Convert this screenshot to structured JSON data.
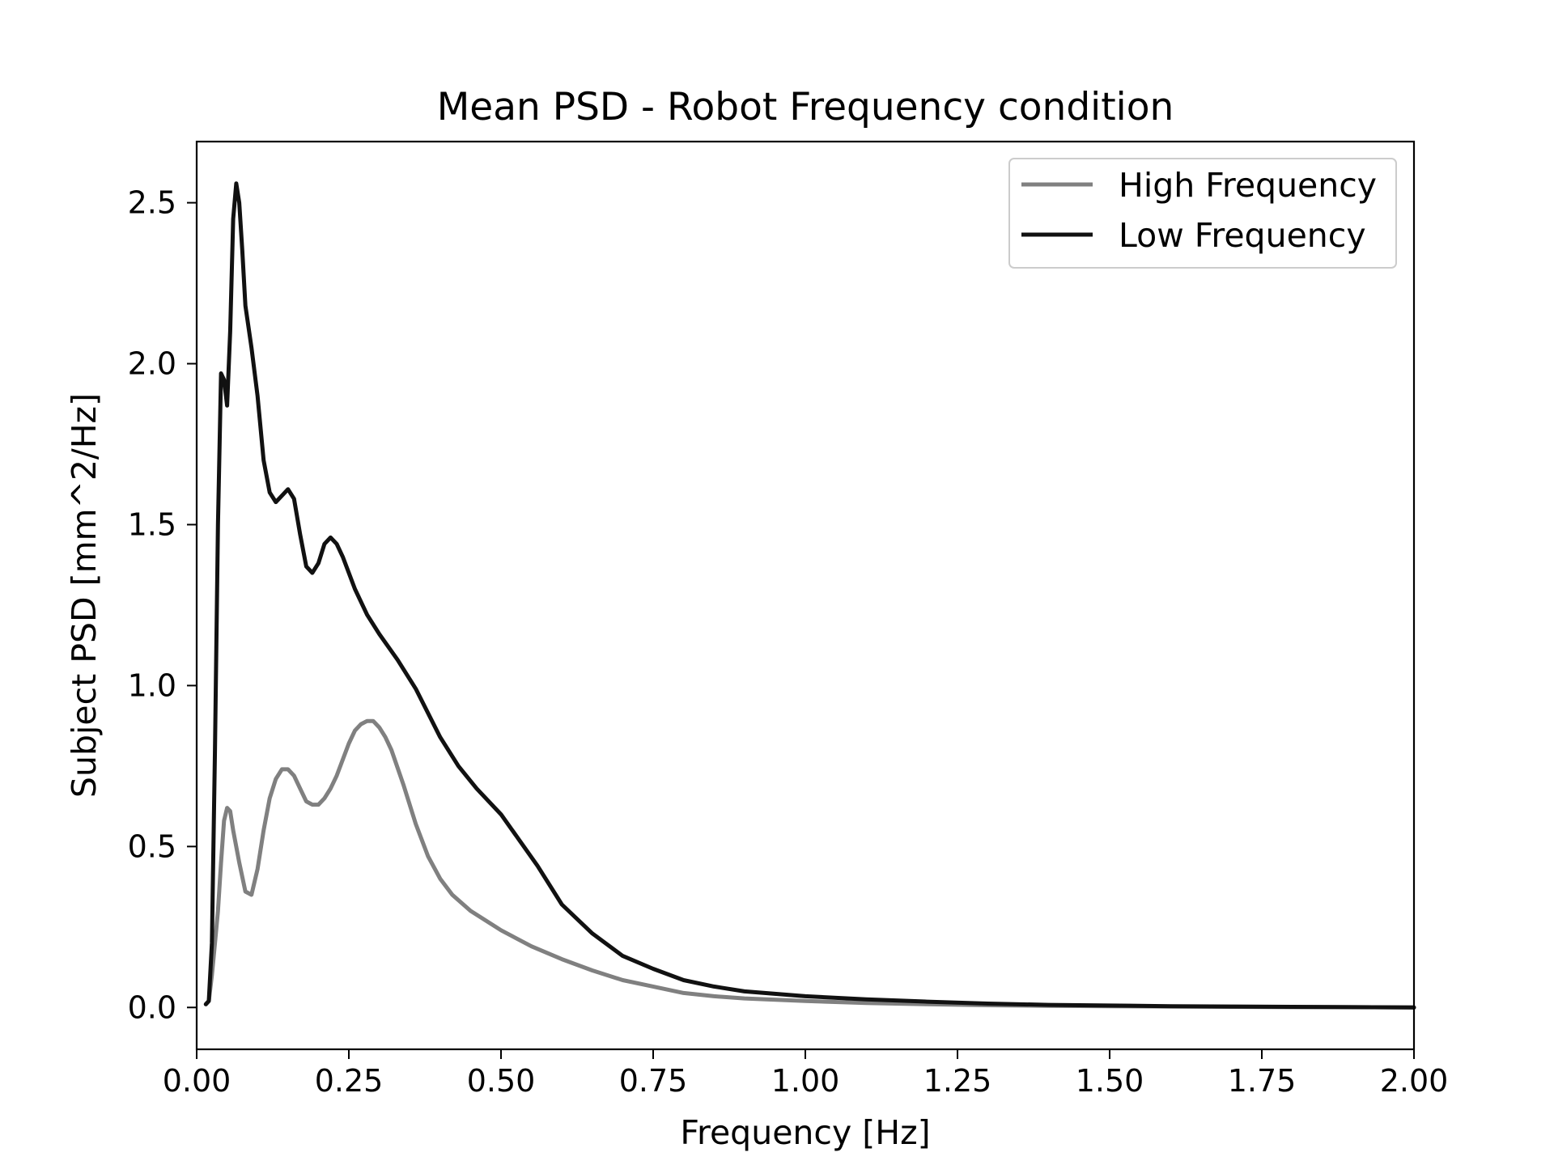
{
  "chart_data": {
    "type": "line",
    "title": "Mean PSD - Robot Frequency condition",
    "xlabel": "Frequency [Hz]",
    "ylabel": "Subject PSD [mm^2/Hz]",
    "xlim": [
      0.0,
      2.0
    ],
    "ylim": [
      -0.13,
      2.69
    ],
    "grid": false,
    "legend_position": "top-right",
    "xticks": [
      0.0,
      0.25,
      0.5,
      0.75,
      1.0,
      1.25,
      1.5,
      1.75,
      2.0
    ],
    "xtick_labels": [
      "0.00",
      "0.25",
      "0.50",
      "0.75",
      "1.00",
      "1.25",
      "1.50",
      "1.75",
      "2.00"
    ],
    "yticks": [
      0.0,
      0.5,
      1.0,
      1.5,
      2.0,
      2.5
    ],
    "ytick_labels": [
      "0.0",
      "0.5",
      "1.0",
      "1.5",
      "2.0",
      "2.5"
    ],
    "series": [
      {
        "name": "High Frequency",
        "color": "#808080",
        "x": [
          0.015,
          0.02,
          0.025,
          0.03,
          0.035,
          0.04,
          0.045,
          0.05,
          0.055,
          0.06,
          0.07,
          0.08,
          0.09,
          0.1,
          0.11,
          0.12,
          0.13,
          0.14,
          0.15,
          0.16,
          0.17,
          0.18,
          0.19,
          0.2,
          0.21,
          0.22,
          0.23,
          0.24,
          0.25,
          0.26,
          0.27,
          0.28,
          0.29,
          0.3,
          0.31,
          0.32,
          0.34,
          0.36,
          0.38,
          0.4,
          0.42,
          0.45,
          0.5,
          0.55,
          0.6,
          0.65,
          0.7,
          0.75,
          0.8,
          0.85,
          0.9,
          1.0,
          1.1,
          1.2,
          1.3,
          1.4,
          1.5,
          1.6,
          1.7,
          1.8,
          1.9,
          2.0
        ],
        "y": [
          0.01,
          0.02,
          0.1,
          0.2,
          0.3,
          0.45,
          0.58,
          0.62,
          0.61,
          0.55,
          0.45,
          0.36,
          0.35,
          0.43,
          0.55,
          0.65,
          0.71,
          0.74,
          0.74,
          0.72,
          0.68,
          0.64,
          0.63,
          0.63,
          0.65,
          0.68,
          0.72,
          0.77,
          0.82,
          0.86,
          0.88,
          0.89,
          0.89,
          0.87,
          0.84,
          0.8,
          0.69,
          0.57,
          0.47,
          0.4,
          0.35,
          0.3,
          0.24,
          0.19,
          0.15,
          0.115,
          0.085,
          0.065,
          0.045,
          0.035,
          0.028,
          0.02,
          0.014,
          0.01,
          0.007,
          0.005,
          0.004,
          0.003,
          0.002,
          0.001,
          0.001,
          0.0
        ]
      },
      {
        "name": "Low Frequency",
        "color": "#111111",
        "x": [
          0.015,
          0.02,
          0.025,
          0.03,
          0.035,
          0.04,
          0.045,
          0.05,
          0.055,
          0.06,
          0.065,
          0.07,
          0.075,
          0.08,
          0.09,
          0.1,
          0.11,
          0.12,
          0.13,
          0.14,
          0.15,
          0.16,
          0.17,
          0.18,
          0.19,
          0.2,
          0.21,
          0.22,
          0.23,
          0.24,
          0.25,
          0.26,
          0.28,
          0.3,
          0.33,
          0.36,
          0.4,
          0.43,
          0.46,
          0.5,
          0.53,
          0.56,
          0.6,
          0.65,
          0.7,
          0.75,
          0.8,
          0.85,
          0.9,
          1.0,
          1.1,
          1.2,
          1.3,
          1.4,
          1.5,
          1.6,
          1.7,
          1.8,
          1.9,
          2.0
        ],
        "y": [
          0.01,
          0.02,
          0.2,
          0.8,
          1.5,
          1.97,
          1.95,
          1.87,
          2.1,
          2.45,
          2.56,
          2.5,
          2.35,
          2.18,
          2.05,
          1.9,
          1.7,
          1.6,
          1.57,
          1.59,
          1.61,
          1.58,
          1.47,
          1.37,
          1.35,
          1.38,
          1.44,
          1.46,
          1.44,
          1.4,
          1.35,
          1.3,
          1.22,
          1.16,
          1.08,
          0.99,
          0.84,
          0.75,
          0.68,
          0.6,
          0.52,
          0.44,
          0.32,
          0.23,
          0.16,
          0.12,
          0.085,
          0.065,
          0.05,
          0.035,
          0.025,
          0.018,
          0.012,
          0.008,
          0.006,
          0.004,
          0.003,
          0.002,
          0.001,
          0.0
        ]
      }
    ]
  }
}
